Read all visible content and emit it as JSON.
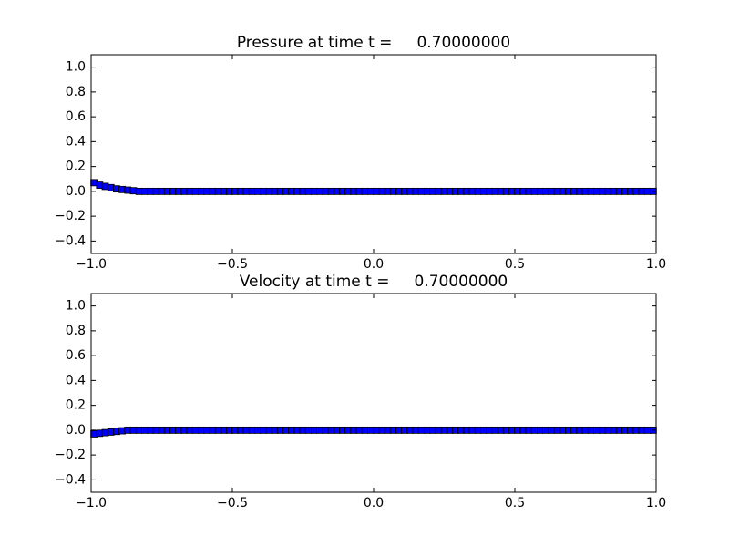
{
  "chart_data": [
    {
      "type": "scatter",
      "title": "Pressure at time t =     0.70000000",
      "color": "#0000ff",
      "x": [
        -0.99,
        -0.97,
        -0.95,
        -0.93,
        -0.91,
        -0.89,
        -0.87,
        -0.85,
        -0.83,
        -0.81,
        -0.79,
        -0.77,
        -0.75,
        -0.73,
        -0.71,
        -0.69,
        -0.67,
        -0.65,
        -0.63,
        -0.61,
        -0.59,
        -0.57,
        -0.55,
        -0.53,
        -0.51,
        -0.49,
        -0.47,
        -0.45,
        -0.43,
        -0.41,
        -0.39,
        -0.37,
        -0.35,
        -0.33,
        -0.31,
        -0.29,
        -0.27,
        -0.25,
        -0.23,
        -0.21,
        -0.19,
        -0.17,
        -0.15,
        -0.13,
        -0.11,
        -0.09,
        -0.07,
        -0.05,
        -0.03,
        -0.01,
        0.01,
        0.03,
        0.05,
        0.07,
        0.09,
        0.11,
        0.13,
        0.15,
        0.17,
        0.19,
        0.21,
        0.23,
        0.25,
        0.27,
        0.29,
        0.31,
        0.33,
        0.35,
        0.37,
        0.39,
        0.41,
        0.43,
        0.45,
        0.47,
        0.49,
        0.51,
        0.53,
        0.55,
        0.57,
        0.59,
        0.61,
        0.63,
        0.65,
        0.67,
        0.69,
        0.71,
        0.73,
        0.75,
        0.77,
        0.79,
        0.81,
        0.83,
        0.85,
        0.87,
        0.89,
        0.91,
        0.93,
        0.95,
        0.97,
        0.99
      ],
      "values": [
        0.07,
        0.05,
        0.04,
        0.03,
        0.02,
        0.015,
        0.01,
        0.005,
        0,
        0,
        0,
        0,
        0,
        0,
        0,
        0,
        0,
        0,
        0,
        0,
        0,
        0,
        0,
        0,
        0,
        0,
        0,
        0,
        0,
        0,
        0,
        0,
        0,
        0,
        0,
        0,
        0,
        0,
        0,
        0,
        0,
        0,
        0,
        0,
        0,
        0,
        0,
        0,
        0,
        0,
        0,
        0,
        0,
        0,
        0,
        0,
        0,
        0,
        0,
        0,
        0,
        0,
        0,
        0,
        0,
        0,
        0,
        0,
        0,
        0,
        0,
        0,
        0,
        0,
        0,
        0,
        0,
        0,
        0,
        0,
        0,
        0,
        0,
        0,
        0,
        0,
        0,
        0,
        0,
        0,
        0,
        0,
        0,
        0,
        0,
        0,
        0,
        0,
        0,
        0
      ],
      "xlim": [
        -1,
        1
      ],
      "ylim": [
        -0.5,
        1.1
      ],
      "xticks": [
        {
          "value": -1,
          "label": "−1.0"
        },
        {
          "value": -0.5,
          "label": "−0.5"
        },
        {
          "value": 0,
          "label": "0.0"
        },
        {
          "value": 0.5,
          "label": "0.5"
        },
        {
          "value": 1,
          "label": "1.0"
        }
      ],
      "yticks": [
        {
          "value": -0.4,
          "label": "−0.4"
        },
        {
          "value": -0.2,
          "label": "−0.2"
        },
        {
          "value": 0,
          "label": "0.0"
        },
        0.2,
        0.4,
        0.6,
        0.8,
        {
          "value": 1,
          "label": "1.0"
        }
      ]
    },
    {
      "type": "scatter",
      "title": "Velocity at time t =     0.70000000",
      "color": "#0000ff",
      "x": [
        -0.99,
        -0.97,
        -0.95,
        -0.93,
        -0.91,
        -0.89,
        -0.87,
        -0.85,
        -0.83,
        -0.81,
        -0.79,
        -0.77,
        -0.75,
        -0.73,
        -0.71,
        -0.69,
        -0.67,
        -0.65,
        -0.63,
        -0.61,
        -0.59,
        -0.57,
        -0.55,
        -0.53,
        -0.51,
        -0.49,
        -0.47,
        -0.45,
        -0.43,
        -0.41,
        -0.39,
        -0.37,
        -0.35,
        -0.33,
        -0.31,
        -0.29,
        -0.27,
        -0.25,
        -0.23,
        -0.21,
        -0.19,
        -0.17,
        -0.15,
        -0.13,
        -0.11,
        -0.09,
        -0.07,
        -0.05,
        -0.03,
        -0.01,
        0.01,
        0.03,
        0.05,
        0.07,
        0.09,
        0.11,
        0.13,
        0.15,
        0.17,
        0.19,
        0.21,
        0.23,
        0.25,
        0.27,
        0.29,
        0.31,
        0.33,
        0.35,
        0.37,
        0.39,
        0.41,
        0.43,
        0.45,
        0.47,
        0.49,
        0.51,
        0.53,
        0.55,
        0.57,
        0.59,
        0.61,
        0.63,
        0.65,
        0.67,
        0.69,
        0.71,
        0.73,
        0.75,
        0.77,
        0.79,
        0.81,
        0.83,
        0.85,
        0.87,
        0.89,
        0.91,
        0.93,
        0.95,
        0.97,
        0.99
      ],
      "values": [
        -0.03,
        -0.025,
        -0.02,
        -0.015,
        -0.01,
        -0.005,
        0,
        0,
        0,
        0,
        0,
        0,
        0,
        0,
        0,
        0,
        0,
        0,
        0,
        0,
        0,
        0,
        0,
        0,
        0,
        0,
        0,
        0,
        0,
        0,
        0,
        0,
        0,
        0,
        0,
        0,
        0,
        0,
        0,
        0,
        0,
        0,
        0,
        0,
        0,
        0,
        0,
        0,
        0,
        0,
        0,
        0,
        0,
        0,
        0,
        0,
        0,
        0,
        0,
        0,
        0,
        0,
        0,
        0,
        0,
        0,
        0,
        0,
        0,
        0,
        0,
        0,
        0,
        0,
        0,
        0,
        0,
        0,
        0,
        0,
        0,
        0,
        0,
        0,
        0,
        0,
        0,
        0,
        0,
        0,
        0,
        0,
        0,
        0,
        0,
        0,
        0,
        0,
        0,
        0
      ],
      "xlim": [
        -1,
        1
      ],
      "ylim": [
        -0.5,
        1.1
      ],
      "xticks": [
        {
          "value": -1,
          "label": "−1.0"
        },
        {
          "value": -0.5,
          "label": "−0.5"
        },
        {
          "value": 0,
          "label": "0.0"
        },
        {
          "value": 0.5,
          "label": "0.5"
        },
        {
          "value": 1,
          "label": "1.0"
        }
      ],
      "yticks": [
        {
          "value": -0.4,
          "label": "−0.4"
        },
        {
          "value": -0.2,
          "label": "−0.2"
        },
        {
          "value": 0,
          "label": "0.0"
        },
        0.2,
        0.4,
        0.6,
        0.8,
        {
          "value": 1,
          "label": "1.0"
        }
      ]
    }
  ]
}
